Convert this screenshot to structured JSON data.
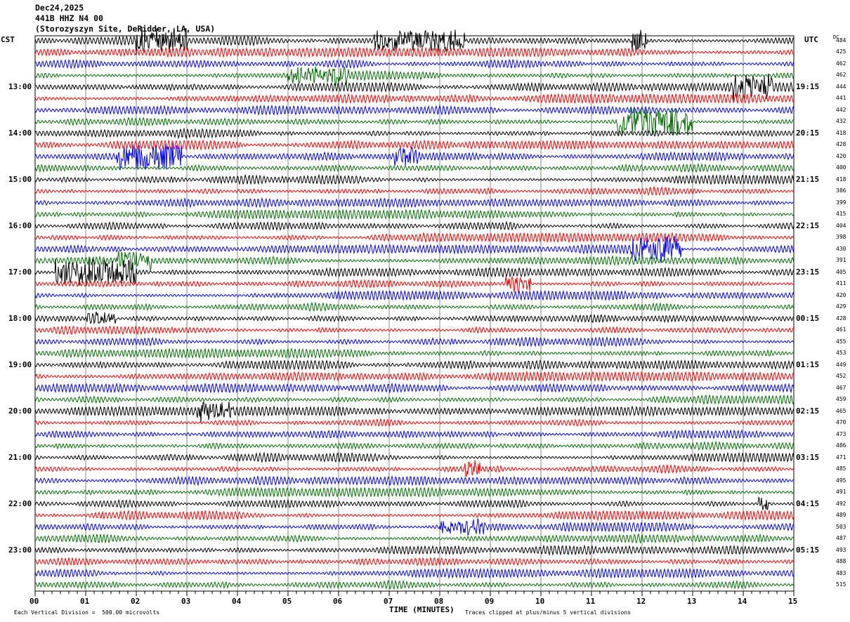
{
  "header": {
    "date": "Dec24,2025",
    "station": "441B HHZ N4 00",
    "site": "(Storozyszyn Site, DeRidder, LA, USA)"
  },
  "left_axis": {
    "title": "CST",
    "hour_labels": [
      "13:00",
      "14:00",
      "15:00",
      "16:00",
      "17:00",
      "18:00",
      "19:00",
      "20:00",
      "21:00",
      "22:00",
      "23:00"
    ]
  },
  "right_axis": {
    "title": "UTC",
    "dc_title": "DC",
    "hour_labels": [
      "19:15",
      "20:15",
      "21:15",
      "22:15",
      "23:15",
      "00:15",
      "01:15",
      "02:15",
      "03:15",
      "04:15",
      "05:15"
    ]
  },
  "footer": {
    "scale": "Each Vertical Division =  500.00 microvolts",
    "xlabel": "TIME (MINUTES)",
    "clip": "Traces clipped at plus/minus 5 vertical divisions"
  },
  "chart_data": {
    "type": "line",
    "title": "Dec24,2025 441B HHZ N4 00",
    "xlabel": "TIME (MINUTES)",
    "xlim": [
      0,
      15
    ],
    "x_ticks": [
      "00",
      "01",
      "02",
      "03",
      "04",
      "05",
      "06",
      "07",
      "08",
      "09",
      "10",
      "11",
      "12",
      "13",
      "14",
      "15"
    ],
    "rows": 48,
    "minutes_per_row": 15,
    "trace_colors": [
      "#000000",
      "#ff0000",
      "#0000ff",
      "#007000"
    ],
    "dc_offsets": [
      484,
      425,
      462,
      462,
      444,
      441,
      442,
      432,
      418,
      428,
      420,
      400,
      418,
      386,
      399,
      415,
      404,
      398,
      430,
      391,
      405,
      411,
      420,
      429,
      428,
      461,
      455,
      453,
      449,
      452,
      467,
      459,
      465,
      470,
      473,
      486,
      471,
      485,
      495,
      491,
      492,
      489,
      503,
      487,
      493,
      488,
      483,
      515
    ],
    "events": [
      {
        "row": 0,
        "start": 2.0,
        "end": 3.0,
        "amp": 2.2
      },
      {
        "row": 0,
        "start": 6.7,
        "end": 8.5,
        "amp": 2.0
      },
      {
        "row": 0,
        "start": 11.8,
        "end": 12.1,
        "amp": 2.4
      },
      {
        "row": 3,
        "start": 5.0,
        "end": 6.2,
        "amp": 1.5
      },
      {
        "row": 4,
        "start": 13.8,
        "end": 14.6,
        "amp": 2.2
      },
      {
        "row": 7,
        "start": 11.5,
        "end": 13.0,
        "amp": 3.0
      },
      {
        "row": 10,
        "start": 1.6,
        "end": 2.9,
        "amp": 2.6
      },
      {
        "row": 10,
        "start": 7.1,
        "end": 7.6,
        "amp": 1.6
      },
      {
        "row": 18,
        "start": 11.8,
        "end": 12.8,
        "amp": 2.6
      },
      {
        "row": 19,
        "start": 1.6,
        "end": 2.3,
        "amp": 1.8
      },
      {
        "row": 20,
        "start": 0.4,
        "end": 2.0,
        "amp": 2.6
      },
      {
        "row": 21,
        "start": 9.3,
        "end": 9.8,
        "amp": 1.5
      },
      {
        "row": 24,
        "start": 1.0,
        "end": 1.6,
        "amp": 1.3
      },
      {
        "row": 32,
        "start": 3.2,
        "end": 3.9,
        "amp": 1.8
      },
      {
        "row": 37,
        "start": 8.5,
        "end": 8.8,
        "amp": 1.6
      },
      {
        "row": 40,
        "start": 14.3,
        "end": 14.5,
        "amp": 1.6
      },
      {
        "row": 42,
        "start": 8.0,
        "end": 8.9,
        "amp": 1.2
      }
    ]
  }
}
